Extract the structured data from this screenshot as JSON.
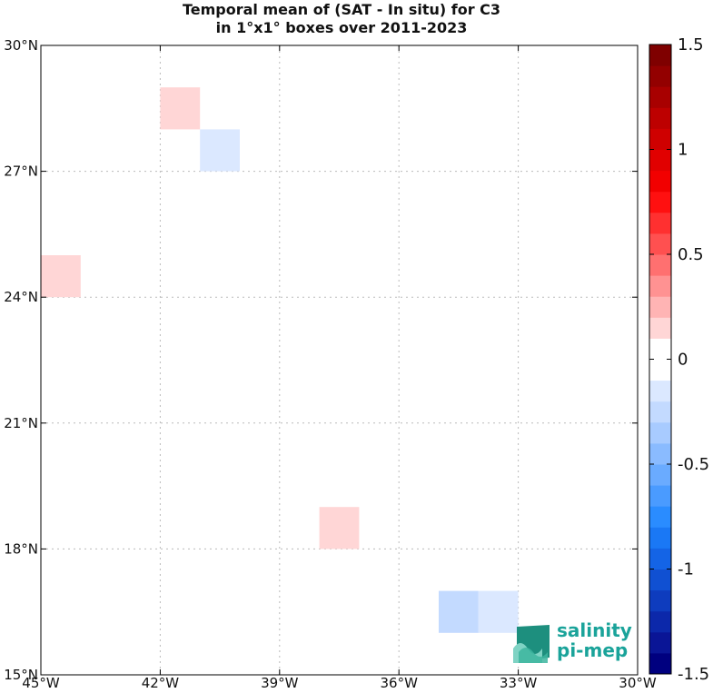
{
  "title_line1": "Temporal mean of (SAT - In situ) for C3",
  "title_line2": "in 1°x1° boxes over 2011-2023",
  "chart_data": {
    "type": "heatmap",
    "xlim": [
      -45,
      -30
    ],
    "ylim": [
      15,
      30
    ],
    "x_ticks": [
      -45,
      -42,
      -39,
      -36,
      -33,
      -30
    ],
    "x_tick_labels": [
      "45°W",
      "42°W",
      "39°W",
      "36°W",
      "33°W",
      "30°W"
    ],
    "y_ticks": [
      15,
      18,
      21,
      24,
      27,
      30
    ],
    "y_tick_labels": [
      "15°N",
      "18°N",
      "21°N",
      "24°N",
      "27°N",
      "30°N"
    ],
    "grid": true,
    "colorbar": {
      "range": [
        -1.5,
        1.5
      ],
      "step": 0.1,
      "ticks": [
        1.5,
        1,
        0.5,
        0,
        -0.5,
        -1,
        -1.5
      ],
      "tick_labels": [
        "1.5",
        "1",
        "0.5",
        "0",
        "-0.5",
        "-1",
        "-1.5"
      ],
      "colors_low_to_high": [
        "#00007f",
        "#0a1596",
        "#0c28aa",
        "#0e3cbe",
        "#1050d2",
        "#1464e6",
        "#1a78f5",
        "#2a8cff",
        "#4a9bff",
        "#6aabff",
        "#8abbff",
        "#a8cbff",
        "#c3daff",
        "#dbe8ff",
        "#ffffff",
        "#ffffff",
        "#ffd6d6",
        "#ffb4b4",
        "#ff9292",
        "#ff7070",
        "#ff5050",
        "#ff3030",
        "#ff1010",
        "#f20000",
        "#e10000",
        "#cf0000",
        "#bd0000",
        "#a80000",
        "#930000",
        "#7f0000"
      ]
    },
    "boxes": [
      {
        "lon": -41.5,
        "lat": 28.5,
        "value": 0.15
      },
      {
        "lon": -40.5,
        "lat": 27.5,
        "value": -0.15
      },
      {
        "lon": -44.5,
        "lat": 24.5,
        "value": 0.15
      },
      {
        "lon": -37.5,
        "lat": 18.5,
        "value": 0.15
      },
      {
        "lon": -34.5,
        "lat": 16.5,
        "value": -0.25
      },
      {
        "lon": -33.5,
        "lat": 16.5,
        "value": -0.15
      }
    ]
  },
  "logo": {
    "line1": "salinity",
    "line2": "pi-mep",
    "color": "#1aa39a"
  }
}
